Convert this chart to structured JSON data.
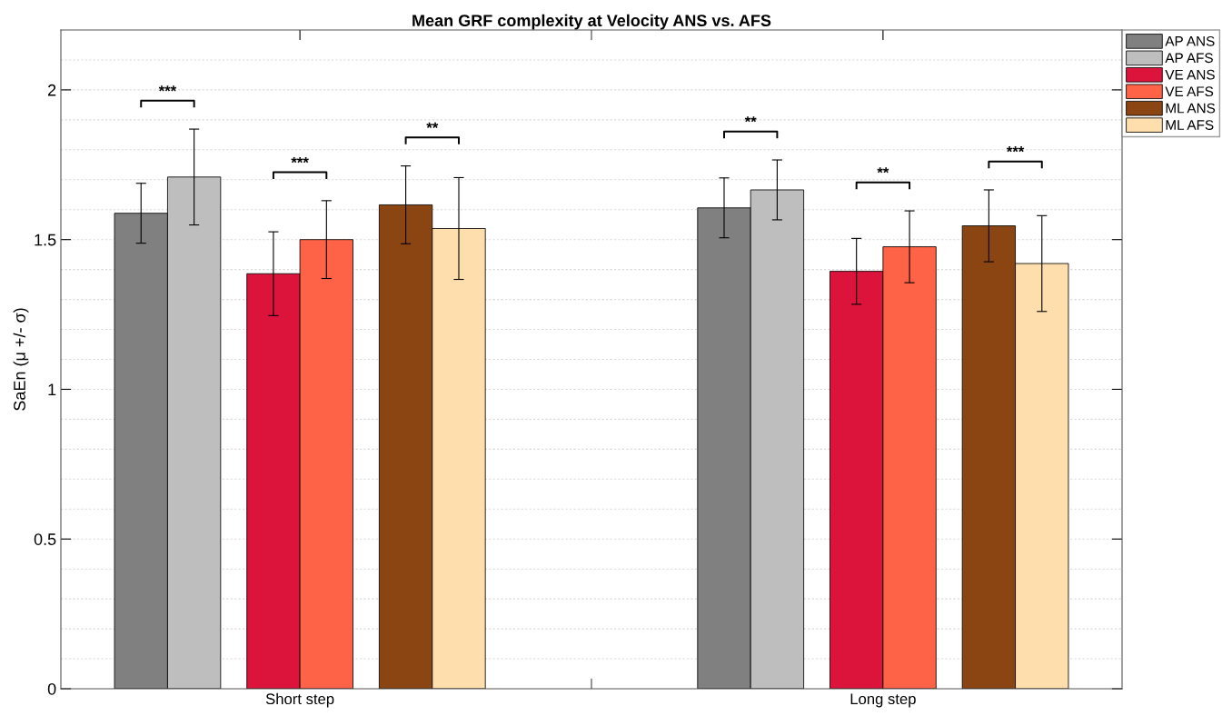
{
  "chart_data": {
    "type": "bar",
    "title": "Mean GRF complexity at Velocity ANS vs. AFS",
    "ylabel": "SaEn (μ +/- σ)",
    "categories": [
      "Short step",
      "Long step"
    ],
    "series": [
      {
        "name": "AP ANS",
        "color": "#808080",
        "values": [
          1.588,
          1.606
        ],
        "errors": [
          0.1,
          0.1
        ]
      },
      {
        "name": "AP AFS",
        "color": "#bebebe",
        "values": [
          1.709,
          1.666
        ],
        "errors": [
          0.16,
          0.1
        ]
      },
      {
        "name": "VE ANS",
        "color": "#dc143c",
        "values": [
          1.386,
          1.394
        ],
        "errors": [
          0.14,
          0.11
        ]
      },
      {
        "name": "VE AFS",
        "color": "#ff6347",
        "values": [
          1.5,
          1.476
        ],
        "errors": [
          0.13,
          0.12
        ]
      },
      {
        "name": "ML ANS",
        "color": "#8b4513",
        "values": [
          1.616,
          1.546
        ],
        "errors": [
          0.13,
          0.12
        ]
      },
      {
        "name": "ML AFS",
        "color": "#ffdead",
        "values": [
          1.537,
          1.42
        ],
        "errors": [
          0.17,
          0.16
        ]
      }
    ],
    "annotations": [
      "***",
      "***",
      "**",
      "**",
      "**",
      "***"
    ],
    "ylim": [
      0,
      2.2
    ],
    "yticks": [
      0,
      0.5,
      1,
      1.5,
      2
    ],
    "grid": "y",
    "legend": "top right outside"
  }
}
